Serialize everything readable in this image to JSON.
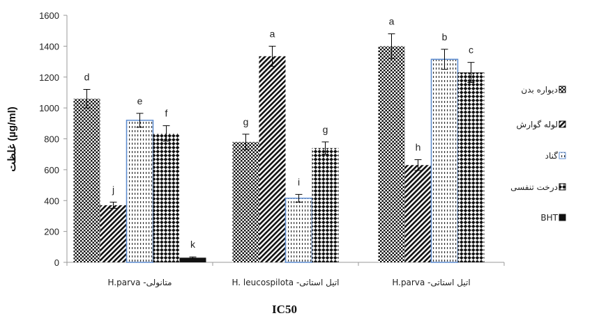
{
  "chart_data": {
    "type": "bar",
    "title": "",
    "xlabel": "IC50",
    "ylabel": "غلظت (µg/ml)",
    "ylim": [
      0,
      1600
    ],
    "yticks": [
      0,
      200,
      400,
      600,
      800,
      1000,
      1200,
      1400,
      1600
    ],
    "grid": false,
    "legend_position": "right",
    "categories": [
      "H.parva -متانولی",
      "H. leucospilota -اتیل استاتی",
      "H.parva -اتیل استاتی"
    ],
    "series": [
      {
        "name": "دیواره بدن",
        "pattern": "check",
        "values": [
          1060,
          780,
          1400
        ],
        "errors": [
          60,
          50,
          80
        ],
        "labels": [
          "d",
          "g",
          "a"
        ]
      },
      {
        "name": "لوله گوارش",
        "pattern": "diag",
        "values": [
          370,
          1335,
          630
        ],
        "errors": [
          20,
          65,
          35
        ],
        "labels": [
          "j",
          "a",
          "h"
        ]
      },
      {
        "name": "گناد",
        "pattern": "dots",
        "values": [
          920,
          415,
          1315
        ],
        "errors": [
          45,
          25,
          65
        ],
        "labels": [
          "e",
          "i",
          "b"
        ]
      },
      {
        "name": "درخت تنفسی",
        "pattern": "bigcheck",
        "values": [
          835,
          740,
          1230
        ],
        "errors": [
          50,
          40,
          65
        ],
        "labels": [
          "f",
          "g",
          "c"
        ]
      },
      {
        "name": "BHT",
        "pattern": "solid",
        "values": [
          30,
          null,
          null
        ],
        "errors": [
          5,
          null,
          null
        ],
        "labels": [
          "k",
          null,
          null
        ]
      }
    ],
    "colors": {
      "bar_fill": "#1a1a1a",
      "gonad_border": "#5b8bd0",
      "axis": "#999999"
    }
  }
}
